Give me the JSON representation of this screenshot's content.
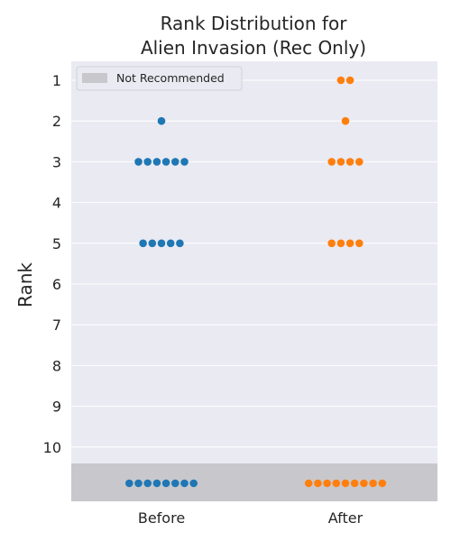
{
  "chart_data": {
    "type": "scatter",
    "title_line1": "Rank Distribution for",
    "title_line2": "Alien Invasion (Rec Only)",
    "ylabel": "Rank",
    "xlabel": "",
    "categories": [
      "Before",
      "After"
    ],
    "y_ticks": [
      "1",
      "2",
      "3",
      "4",
      "5",
      "6",
      "7",
      "8",
      "9",
      "10"
    ],
    "ylim": [
      0.55,
      11.4
    ],
    "grid": true,
    "legend": {
      "position": "top-left",
      "label": "Not Recommended"
    },
    "series": [
      {
        "category": "Before",
        "color": "#1f77b4",
        "counts": {
          "2": 1,
          "3": 6,
          "5": 5,
          "11": 8
        }
      },
      {
        "category": "After",
        "color": "#ff7f0e",
        "counts": {
          "1": 2,
          "2": 1,
          "3": 4,
          "5": 4,
          "11": 9
        }
      }
    ],
    "not_recommended_rank": 11,
    "colors": {
      "plot_background": "#eaeaf2",
      "grid": "#ffffff",
      "not_recommended_band": "#c8c8cc"
    }
  }
}
